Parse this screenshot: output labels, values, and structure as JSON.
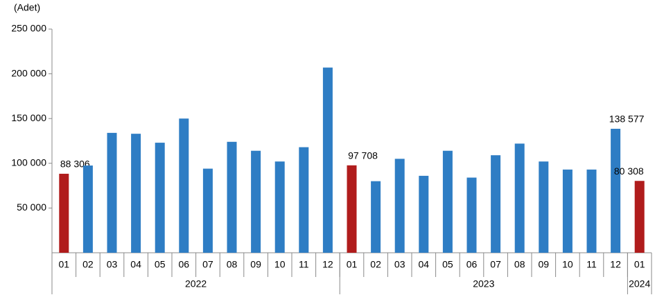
{
  "chart_data": {
    "type": "bar",
    "y_label": "(Adet)",
    "ylim": [
      0,
      250000
    ],
    "yticks": [
      {
        "value": 50000,
        "label": "50 000"
      },
      {
        "value": 100000,
        "label": "100 000"
      },
      {
        "value": 150000,
        "label": "150 000"
      },
      {
        "value": 200000,
        "label": "200 000"
      },
      {
        "value": 250000,
        "label": "250 000"
      }
    ],
    "groups": [
      {
        "name": "2022",
        "categories": [
          "01",
          "02",
          "03",
          "04",
          "05",
          "06",
          "07",
          "08",
          "09",
          "10",
          "11",
          "12"
        ],
        "values": [
          88306,
          97500,
          134000,
          133000,
          123000,
          150000,
          94000,
          124000,
          114000,
          102000,
          118000,
          207000
        ],
        "value_labels": [
          "88 306",
          null,
          null,
          null,
          null,
          null,
          null,
          null,
          null,
          null,
          null,
          null
        ],
        "colors": [
          "#b01c1c",
          "#2e7dc4",
          "#2e7dc4",
          "#2e7dc4",
          "#2e7dc4",
          "#2e7dc4",
          "#2e7dc4",
          "#2e7dc4",
          "#2e7dc4",
          "#2e7dc4",
          "#2e7dc4",
          "#2e7dc4"
        ]
      },
      {
        "name": "2023",
        "categories": [
          "01",
          "02",
          "03",
          "04",
          "05",
          "06",
          "07",
          "08",
          "09",
          "10",
          "11",
          "12"
        ],
        "values": [
          97708,
          80000,
          105000,
          86000,
          114000,
          84000,
          109000,
          122000,
          102000,
          93000,
          93000,
          138577
        ],
        "value_labels": [
          "97 708",
          null,
          null,
          null,
          null,
          null,
          null,
          null,
          null,
          null,
          null,
          "138 577"
        ],
        "colors": [
          "#b01c1c",
          "#2e7dc4",
          "#2e7dc4",
          "#2e7dc4",
          "#2e7dc4",
          "#2e7dc4",
          "#2e7dc4",
          "#2e7dc4",
          "#2e7dc4",
          "#2e7dc4",
          "#2e7dc4",
          "#2e7dc4"
        ]
      },
      {
        "name": "2024",
        "categories": [
          "01"
        ],
        "values": [
          80308
        ],
        "value_labels": [
          "80 308"
        ],
        "colors": [
          "#b01c1c"
        ]
      }
    ]
  }
}
